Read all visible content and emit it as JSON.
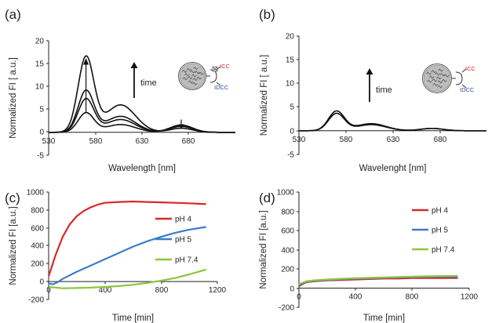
{
  "chart_data": [
    {
      "id": "a",
      "panel_label": "(a)",
      "type": "line",
      "xlabel": "Wavelength [nm]",
      "ylabel": "Normalized FI [  a.u.]",
      "xlim": [
        530,
        730
      ],
      "ylim": [
        -5,
        20
      ],
      "xticks": [
        "530",
        "580",
        "630",
        "680"
      ],
      "yticks": [
        "-5",
        "0",
        "5",
        "10",
        "15",
        "20"
      ],
      "annotation": "time",
      "inset_labels": {
        "top": "ICC",
        "bottom": "IDCC"
      },
      "series": [
        {
          "peak": 4.2,
          "shoulder": 1.7,
          "red": 1.6
        },
        {
          "peak": 7.2,
          "shoulder": 2.8,
          "red": 1.5
        },
        {
          "peak": 9.0,
          "shoulder": 3.5,
          "red": 1.3
        },
        {
          "peak": 16.3,
          "shoulder": 6.0,
          "red": 0.9
        }
      ]
    },
    {
      "id": "b",
      "panel_label": "(b)",
      "type": "line",
      "xlabel": "Wavelenght [nm]",
      "ylabel": "Normalized FI [  a.u.]",
      "xlim": [
        530,
        730
      ],
      "ylim": [
        -5,
        20
      ],
      "xticks": [
        "530",
        "580",
        "630",
        "680"
      ],
      "yticks": [
        "-5",
        "0",
        "5",
        "10",
        "15",
        "20"
      ],
      "annotation": "time",
      "inset_labels": {
        "top": "ICC",
        "bottom": "IDCC"
      },
      "series": [
        {
          "peak": 3.6,
          "shoulder": 1.3,
          "red": 0.5
        },
        {
          "peak": 4.1,
          "shoulder": 1.5,
          "red": 0.5
        }
      ]
    },
    {
      "id": "c",
      "panel_label": "(c)",
      "type": "line",
      "xlabel": "Time [min]",
      "ylabel": "Normalized FI   [a.u.]",
      "xlim": [
        0,
        1200
      ],
      "ylim": [
        -200,
        1000
      ],
      "xticks": [
        "0",
        "400",
        "800",
        "1200"
      ],
      "yticks": [
        "-200",
        "0",
        "200",
        "400",
        "600",
        "800",
        "1000"
      ],
      "series": [
        {
          "name": "pH 4",
          "color": "#d7282d",
          "points": [
            [
              0,
              60
            ],
            [
              50,
              300
            ],
            [
              100,
              500
            ],
            [
              150,
              640
            ],
            [
              200,
              730
            ],
            [
              250,
              790
            ],
            [
              300,
              830
            ],
            [
              350,
              860
            ],
            [
              400,
              880
            ],
            [
              500,
              890
            ],
            [
              600,
              895
            ],
            [
              700,
              890
            ],
            [
              800,
              885
            ],
            [
              900,
              880
            ],
            [
              1000,
              875
            ],
            [
              1120,
              865
            ]
          ]
        },
        {
          "name": "pH 5",
          "color": "#3d7dc8",
          "points": [
            [
              0,
              -20
            ],
            [
              30,
              -30
            ],
            [
              60,
              -10
            ],
            [
              100,
              30
            ],
            [
              200,
              110
            ],
            [
              300,
              180
            ],
            [
              400,
              250
            ],
            [
              500,
              320
            ],
            [
              600,
              390
            ],
            [
              700,
              450
            ],
            [
              800,
              500
            ],
            [
              900,
              545
            ],
            [
              1000,
              580
            ],
            [
              1120,
              610
            ]
          ]
        },
        {
          "name": "pH 7.4",
          "color": "#8cc63f",
          "points": [
            [
              0,
              -60
            ],
            [
              100,
              -75
            ],
            [
              200,
              -72
            ],
            [
              300,
              -68
            ],
            [
              400,
              -60
            ],
            [
              500,
              -50
            ],
            [
              600,
              -35
            ],
            [
              700,
              -15
            ],
            [
              800,
              10
            ],
            [
              900,
              40
            ],
            [
              1000,
              80
            ],
            [
              1120,
              135
            ]
          ]
        }
      ]
    },
    {
      "id": "d",
      "panel_label": "(d)",
      "type": "line",
      "xlabel": "Time [min]",
      "ylabel": "Normalized FI   [a.u.]",
      "xlim": [
        0,
        1200
      ],
      "ylim": [
        -200,
        1000
      ],
      "xticks": [
        "0",
        "400",
        "800",
        "1200"
      ],
      "yticks": [
        "-200",
        "0",
        "200",
        "400",
        "600",
        "800",
        "1000"
      ],
      "series": [
        {
          "name": "pH 4",
          "color": "#d7282d",
          "points": [
            [
              0,
              20
            ],
            [
              50,
              60
            ],
            [
              100,
              70
            ],
            [
              200,
              80
            ],
            [
              300,
              85
            ],
            [
              400,
              90
            ],
            [
              500,
              95
            ],
            [
              600,
              100
            ],
            [
              700,
              100
            ],
            [
              800,
              105
            ],
            [
              900,
              105
            ],
            [
              1000,
              105
            ],
            [
              1120,
              105
            ]
          ]
        },
        {
          "name": "pH 5",
          "color": "#3d7dc8",
          "points": [
            [
              0,
              30
            ],
            [
              50,
              65
            ],
            [
              100,
              75
            ],
            [
              200,
              85
            ],
            [
              300,
              92
            ],
            [
              400,
              98
            ],
            [
              500,
              102
            ],
            [
              600,
              108
            ],
            [
              700,
              112
            ],
            [
              800,
              115
            ],
            [
              900,
              118
            ],
            [
              1000,
              120
            ],
            [
              1120,
              120
            ]
          ]
        },
        {
          "name": "pH 7.4",
          "color": "#8cc63f",
          "points": [
            [
              0,
              40
            ],
            [
              50,
              70
            ],
            [
              100,
              80
            ],
            [
              200,
              90
            ],
            [
              300,
              97
            ],
            [
              400,
              103
            ],
            [
              500,
              108
            ],
            [
              600,
              112
            ],
            [
              700,
              116
            ],
            [
              800,
              120
            ],
            [
              900,
              123
            ],
            [
              1000,
              125
            ],
            [
              1120,
              128
            ]
          ]
        }
      ]
    }
  ]
}
